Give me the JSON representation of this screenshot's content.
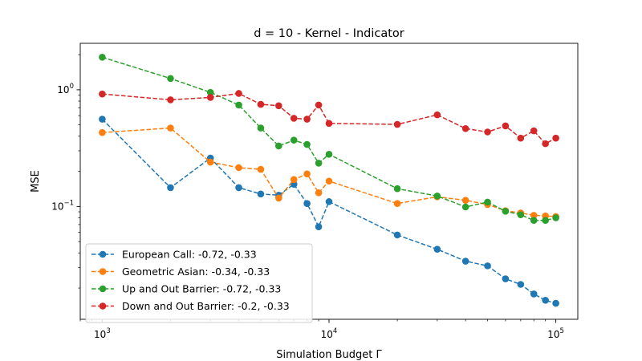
{
  "chart_data": {
    "type": "line",
    "title": "d = 10 - Kernel - Indicator",
    "xlabel": "Simulation Budget Γ",
    "ylabel": "MSE",
    "xscale": "log",
    "yscale": "log",
    "xlim": [
      800,
      125000
    ],
    "ylim": [
      0.0108,
      2.5
    ],
    "x_ticks": [
      {
        "value": 1000,
        "base": "10",
        "exp": "3"
      },
      {
        "value": 10000,
        "base": "10",
        "exp": "4"
      },
      {
        "value": 100000,
        "base": "10",
        "exp": "5"
      }
    ],
    "y_ticks": [
      {
        "value": 0.1,
        "base": "10",
        "exp": "−1"
      },
      {
        "value": 1,
        "base": "10",
        "exp": "0"
      }
    ],
    "grid": false,
    "legend_position": "lower-left",
    "x": [
      1000,
      2000,
      3000,
      4000,
      5000,
      6000,
      7000,
      8000,
      9000,
      10000,
      20000,
      30000,
      40000,
      50000,
      60000,
      70000,
      80000,
      90000,
      100000
    ],
    "series": [
      {
        "name": "European Call: -0.72, -0.33",
        "color": "#1f77b4",
        "values": [
          0.56,
          0.145,
          0.26,
          0.145,
          0.128,
          0.125,
          0.155,
          0.106,
          0.067,
          0.11,
          0.057,
          0.043,
          0.034,
          0.031,
          0.024,
          0.0215,
          0.0178,
          0.0157,
          0.0148
        ]
      },
      {
        "name": "Geometric Asian: -0.34, -0.33",
        "color": "#ff7f0e",
        "values": [
          0.43,
          0.47,
          0.24,
          0.215,
          0.208,
          0.118,
          0.17,
          0.19,
          0.131,
          0.165,
          0.106,
          0.121,
          0.113,
          0.104,
          0.092,
          0.088,
          0.084,
          0.083,
          0.082
        ]
      },
      {
        "name": "Up and Out Barrier: -0.72, -0.33",
        "color": "#2ca02c",
        "values": [
          1.9,
          1.25,
          0.95,
          0.74,
          0.47,
          0.33,
          0.37,
          0.34,
          0.235,
          0.28,
          0.142,
          0.123,
          0.099,
          0.109,
          0.091,
          0.085,
          0.076,
          0.076,
          0.08
        ]
      },
      {
        "name": "Down and Out Barrier: -0.2, -0.33",
        "color": "#d62728",
        "values": [
          0.92,
          0.82,
          0.86,
          0.93,
          0.75,
          0.73,
          0.57,
          0.56,
          0.74,
          0.515,
          0.505,
          0.61,
          0.465,
          0.435,
          0.49,
          0.385,
          0.445,
          0.345,
          0.385
        ]
      }
    ]
  }
}
